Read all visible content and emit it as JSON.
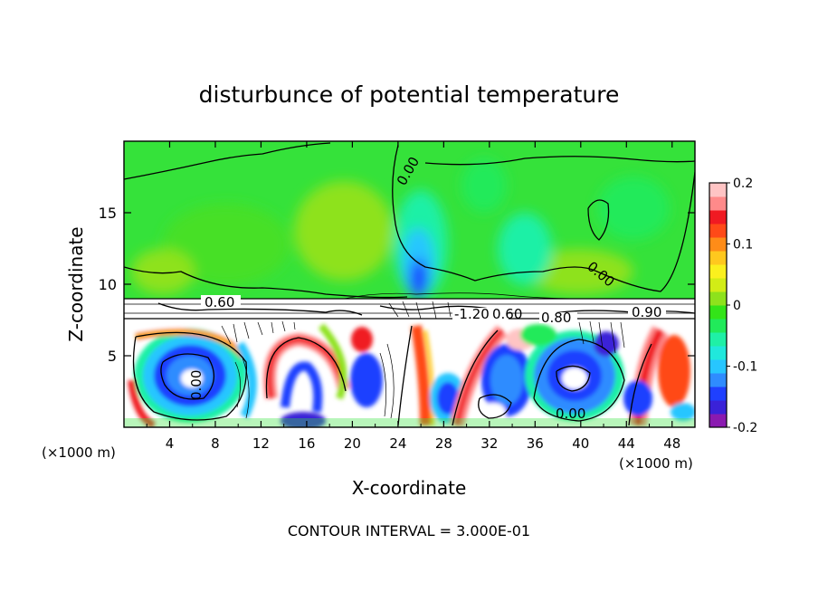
{
  "chart_data": {
    "type": "heatmap",
    "title": "disturbunce of potential temperature",
    "xlabel": "X-coordinate",
    "ylabel": "Z-coordinate",
    "x_unit": "(×1000 m)",
    "x_unit_right": "(×1000 m)",
    "xlim": [
      0,
      50
    ],
    "ylim": [
      0,
      20
    ],
    "x_ticks": [
      4,
      8,
      12,
      16,
      20,
      24,
      28,
      32,
      36,
      40,
      44,
      48
    ],
    "y_ticks": [
      5,
      10,
      15
    ],
    "colorbar": {
      "range": [
        -0.2,
        0.2
      ],
      "tick_labels": [
        "0.2",
        "0.1",
        "0",
        "-0.1",
        "-0.2"
      ],
      "tick_values": [
        0.2,
        0.1,
        0,
        -0.1,
        -0.2
      ],
      "colors": [
        "#8a1ab0",
        "#3a22d8",
        "#1f40ff",
        "#2f8cff",
        "#27c6ff",
        "#20e8dc",
        "#1ff0a6",
        "#21ea5a",
        "#33e418",
        "#8ee21c",
        "#d2ec16",
        "#fbf01e",
        "#ffc81e",
        "#ff8c18",
        "#ff4a18",
        "#f01a22",
        "#ff8a8a",
        "#ffc4c4"
      ]
    },
    "contour_labels": [
      "0.00",
      "0.00",
      "0.60",
      "-1.20",
      "0.60",
      "0.80",
      "0.90",
      "0.00",
      "0.00"
    ],
    "footer": "CONTOUR INTERVAL = 3.000E-01"
  }
}
